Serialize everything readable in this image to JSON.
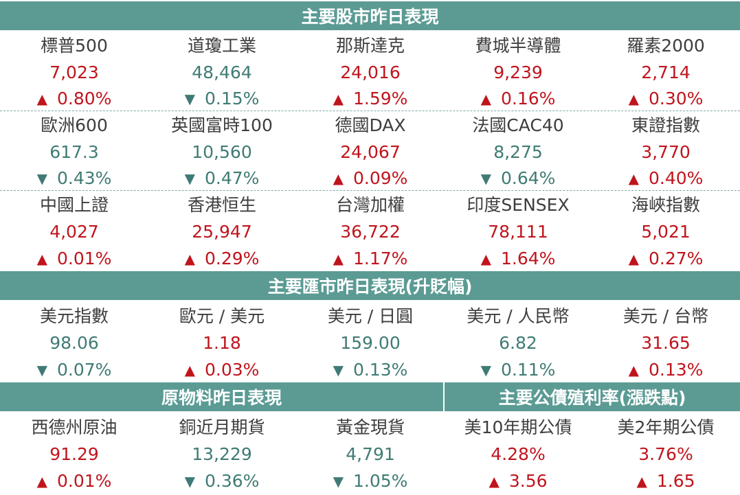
{
  "headers": {
    "stocks": "主要股市昨日表現",
    "fx": "主要匯市昨日表現(升貶幅)",
    "commodities": "原物料昨日表現",
    "bonds": "主要公債殖利率(漲跌點)"
  },
  "stocks": [
    [
      {
        "name": "標普500",
        "value": "7,023",
        "change": "0.80%",
        "dir": "up"
      },
      {
        "name": "道瓊工業",
        "value": "48,464",
        "change": "0.15%",
        "dir": "down"
      },
      {
        "name": "那斯達克",
        "value": "24,016",
        "change": "1.59%",
        "dir": "up"
      },
      {
        "name": "費城半導體",
        "value": "9,239",
        "change": "0.16%",
        "dir": "up"
      },
      {
        "name": "羅素2000",
        "value": "2,714",
        "change": "0.30%",
        "dir": "up"
      }
    ],
    [
      {
        "name": "歐洲600",
        "value": "617.3",
        "change": "0.43%",
        "dir": "down"
      },
      {
        "name": "英國富時100",
        "value": "10,560",
        "change": "0.47%",
        "dir": "down"
      },
      {
        "name": "德國DAX",
        "value": "24,067",
        "change": "0.09%",
        "dir": "up"
      },
      {
        "name": "法國CAC40",
        "value": "8,275",
        "change": "0.64%",
        "dir": "down"
      },
      {
        "name": "東證指數",
        "value": "3,770",
        "change": "0.40%",
        "dir": "up"
      }
    ],
    [
      {
        "name": "中國上證",
        "value": "4,027",
        "change": "0.01%",
        "dir": "up"
      },
      {
        "name": "香港恒生",
        "value": "25,947",
        "change": "0.29%",
        "dir": "up"
      },
      {
        "name": "台灣加權",
        "value": "36,722",
        "change": "1.17%",
        "dir": "up"
      },
      {
        "name": "印度SENSEX",
        "value": "78,111",
        "change": "1.64%",
        "dir": "up"
      },
      {
        "name": "海峽指數",
        "value": "5,021",
        "change": "0.27%",
        "dir": "up"
      }
    ]
  ],
  "fx": [
    {
      "name": "美元指數",
      "value": "98.06",
      "change": "0.07%",
      "dir": "down"
    },
    {
      "name": "歐元 / 美元",
      "value": "1.18",
      "change": "0.03%",
      "dir": "up"
    },
    {
      "name": "美元 / 日圓",
      "value": "159.00",
      "change": "0.13%",
      "dir": "down"
    },
    {
      "name": "美元 / 人民幣",
      "value": "6.82",
      "change": "0.11%",
      "dir": "down"
    },
    {
      "name": "美元 / 台幣",
      "value": "31.65",
      "change": "0.13%",
      "dir": "up"
    }
  ],
  "commodities": [
    {
      "name": "西德州原油",
      "value": "91.29",
      "change": "0.01%",
      "dir": "up"
    },
    {
      "name": "銅近月期貨",
      "value": "13,229",
      "change": "0.36%",
      "dir": "down"
    },
    {
      "name": "黃金現貨",
      "value": "4,791",
      "change": "1.05%",
      "dir": "down"
    }
  ],
  "bonds": [
    {
      "name": "美10年期公債",
      "value": "4.28%",
      "change": "3.56",
      "dir": "up"
    },
    {
      "name": "美2年期公債",
      "value": "3.76%",
      "change": "1.65",
      "dir": "up"
    }
  ],
  "icons": {
    "up": "up-triangle-icon",
    "down": "down-triangle-icon"
  },
  "colors": {
    "header_bg": "#5b9b94",
    "up": "#c0141c",
    "down": "#3f7b74",
    "name": "#3d3d3d"
  }
}
